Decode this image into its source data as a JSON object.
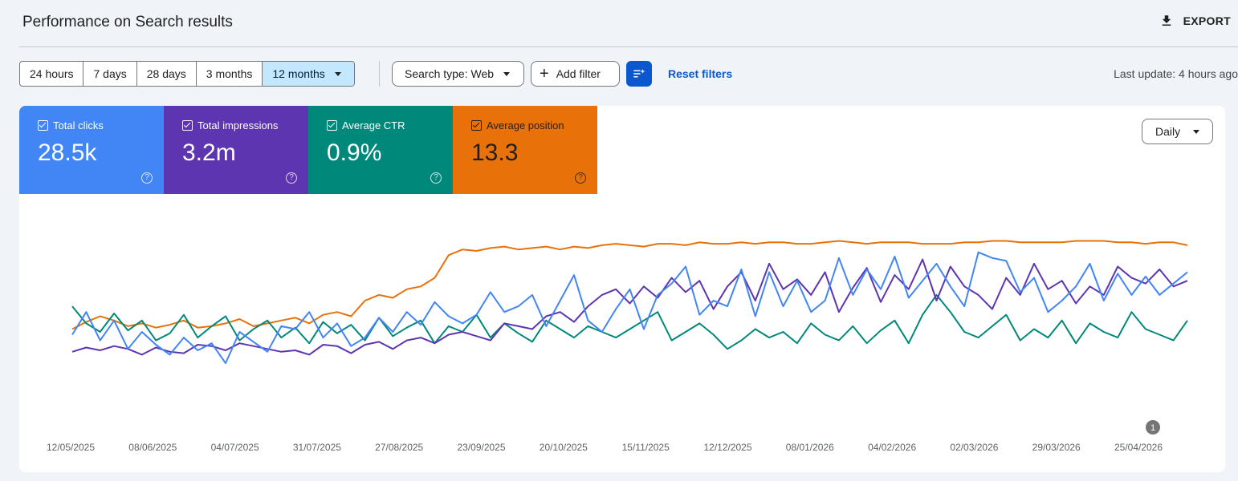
{
  "header": {
    "title": "Performance on Search results",
    "export_label": "EXPORT"
  },
  "toolbar": {
    "ranges": [
      "24 hours",
      "7 days",
      "28 days",
      "3 months",
      "12 months"
    ],
    "active_range_index": 4,
    "search_type": "Search type: Web",
    "add_filter": "Add filter",
    "reset_filters": "Reset filters",
    "last_update": "Last update: 4 hours ago"
  },
  "metrics": [
    {
      "label": "Total clicks",
      "value": "28.5k",
      "color": "#4285f4"
    },
    {
      "label": "Total impressions",
      "value": "3.2m",
      "color": "#5e35b1"
    },
    {
      "label": "Average CTR",
      "value": "0.9%",
      "color": "#00897b"
    },
    {
      "label": "Average position",
      "value": "13.3",
      "color": "#e8710a"
    }
  ],
  "granularity": "Daily",
  "chart_data": {
    "type": "line",
    "x_ticks": [
      "12/05/2025",
      "08/06/2025",
      "04/07/2025",
      "31/07/2025",
      "27/08/2025",
      "23/09/2025",
      "20/10/2025",
      "15/11/2025",
      "12/12/2025",
      "08/01/2026",
      "04/02/2026",
      "02/03/2026",
      "29/03/2026",
      "25/04/2026"
    ],
    "annotation": {
      "label": "1",
      "date": "25/04/2026"
    },
    "grid": false,
    "series": [
      {
        "name": "Total clicks",
        "color": "#4285f4",
        "values": [
          42,
          58,
          38,
          52,
          32,
          44,
          35,
          28,
          40,
          31,
          36,
          22,
          44,
          37,
          30,
          48,
          46,
          58,
          40,
          50,
          34,
          40,
          54,
          44,
          58,
          49,
          65,
          55,
          50,
          56,
          72,
          58,
          62,
          70,
          48,
          66,
          84,
          52,
          44,
          60,
          74,
          46,
          70,
          78,
          90,
          56,
          66,
          62,
          88,
          55,
          86,
          62,
          80,
          58,
          66,
          96,
          70,
          88,
          74,
          97,
          68,
          80,
          92,
          76,
          62,
          100,
          96,
          94,
          72,
          82,
          58,
          66,
          76,
          92,
          66,
          85,
          70,
          83,
          70,
          78,
          86
        ]
      },
      {
        "name": "Total impressions",
        "color": "#5e35b1",
        "values": [
          30,
          33,
          31,
          34,
          32,
          28,
          33,
          30,
          29,
          35,
          34,
          31,
          36,
          34,
          32,
          30,
          31,
          28,
          35,
          34,
          29,
          35,
          37,
          32,
          38,
          40,
          36,
          42,
          44,
          41,
          38,
          50,
          48,
          46,
          55,
          58,
          51,
          62,
          70,
          74,
          64,
          76,
          68,
          82,
          72,
          80,
          60,
          76,
          86,
          66,
          92,
          74,
          81,
          70,
          86,
          58,
          75,
          89,
          65,
          84,
          74,
          95,
          66,
          90,
          76,
          70,
          60,
          82,
          70,
          92,
          74,
          80,
          64,
          76,
          70,
          90,
          82,
          78,
          88,
          76,
          80
        ]
      },
      {
        "name": "Average CTR",
        "color": "#00897b",
        "values": [
          62,
          50,
          44,
          57,
          45,
          52,
          38,
          43,
          56,
          40,
          48,
          55,
          38,
          46,
          52,
          40,
          47,
          36,
          51,
          43,
          49,
          38,
          54,
          41,
          47,
          52,
          36,
          48,
          44,
          56,
          40,
          50,
          43,
          37,
          52,
          46,
          40,
          48,
          44,
          40,
          46,
          52,
          58,
          38,
          44,
          50,
          42,
          32,
          38,
          46,
          40,
          44,
          36,
          50,
          42,
          38,
          48,
          36,
          45,
          52,
          36,
          56,
          70,
          58,
          44,
          40,
          48,
          56,
          38,
          46,
          40,
          52,
          36,
          50,
          44,
          40,
          58,
          46,
          42,
          38,
          52
        ]
      },
      {
        "name": "Average position",
        "color": "#e8710a",
        "values": [
          46,
          51,
          55,
          52,
          48,
          50,
          47,
          49,
          52,
          47,
          48,
          50,
          53,
          48,
          50,
          52,
          54,
          50,
          56,
          58,
          55,
          66,
          70,
          68,
          74,
          76,
          82,
          98,
          102,
          101,
          103,
          104,
          102,
          103,
          104,
          102,
          104,
          103,
          105,
          106,
          105,
          104,
          106,
          106,
          105,
          107,
          106,
          106,
          107,
          106,
          107,
          107,
          106,
          106,
          107,
          108,
          107,
          106,
          107,
          107,
          107,
          106,
          106,
          106,
          107,
          107,
          108,
          108,
          107,
          107,
          107,
          107,
          108,
          108,
          108,
          107,
          107,
          106,
          107,
          107,
          105
        ]
      }
    ]
  }
}
